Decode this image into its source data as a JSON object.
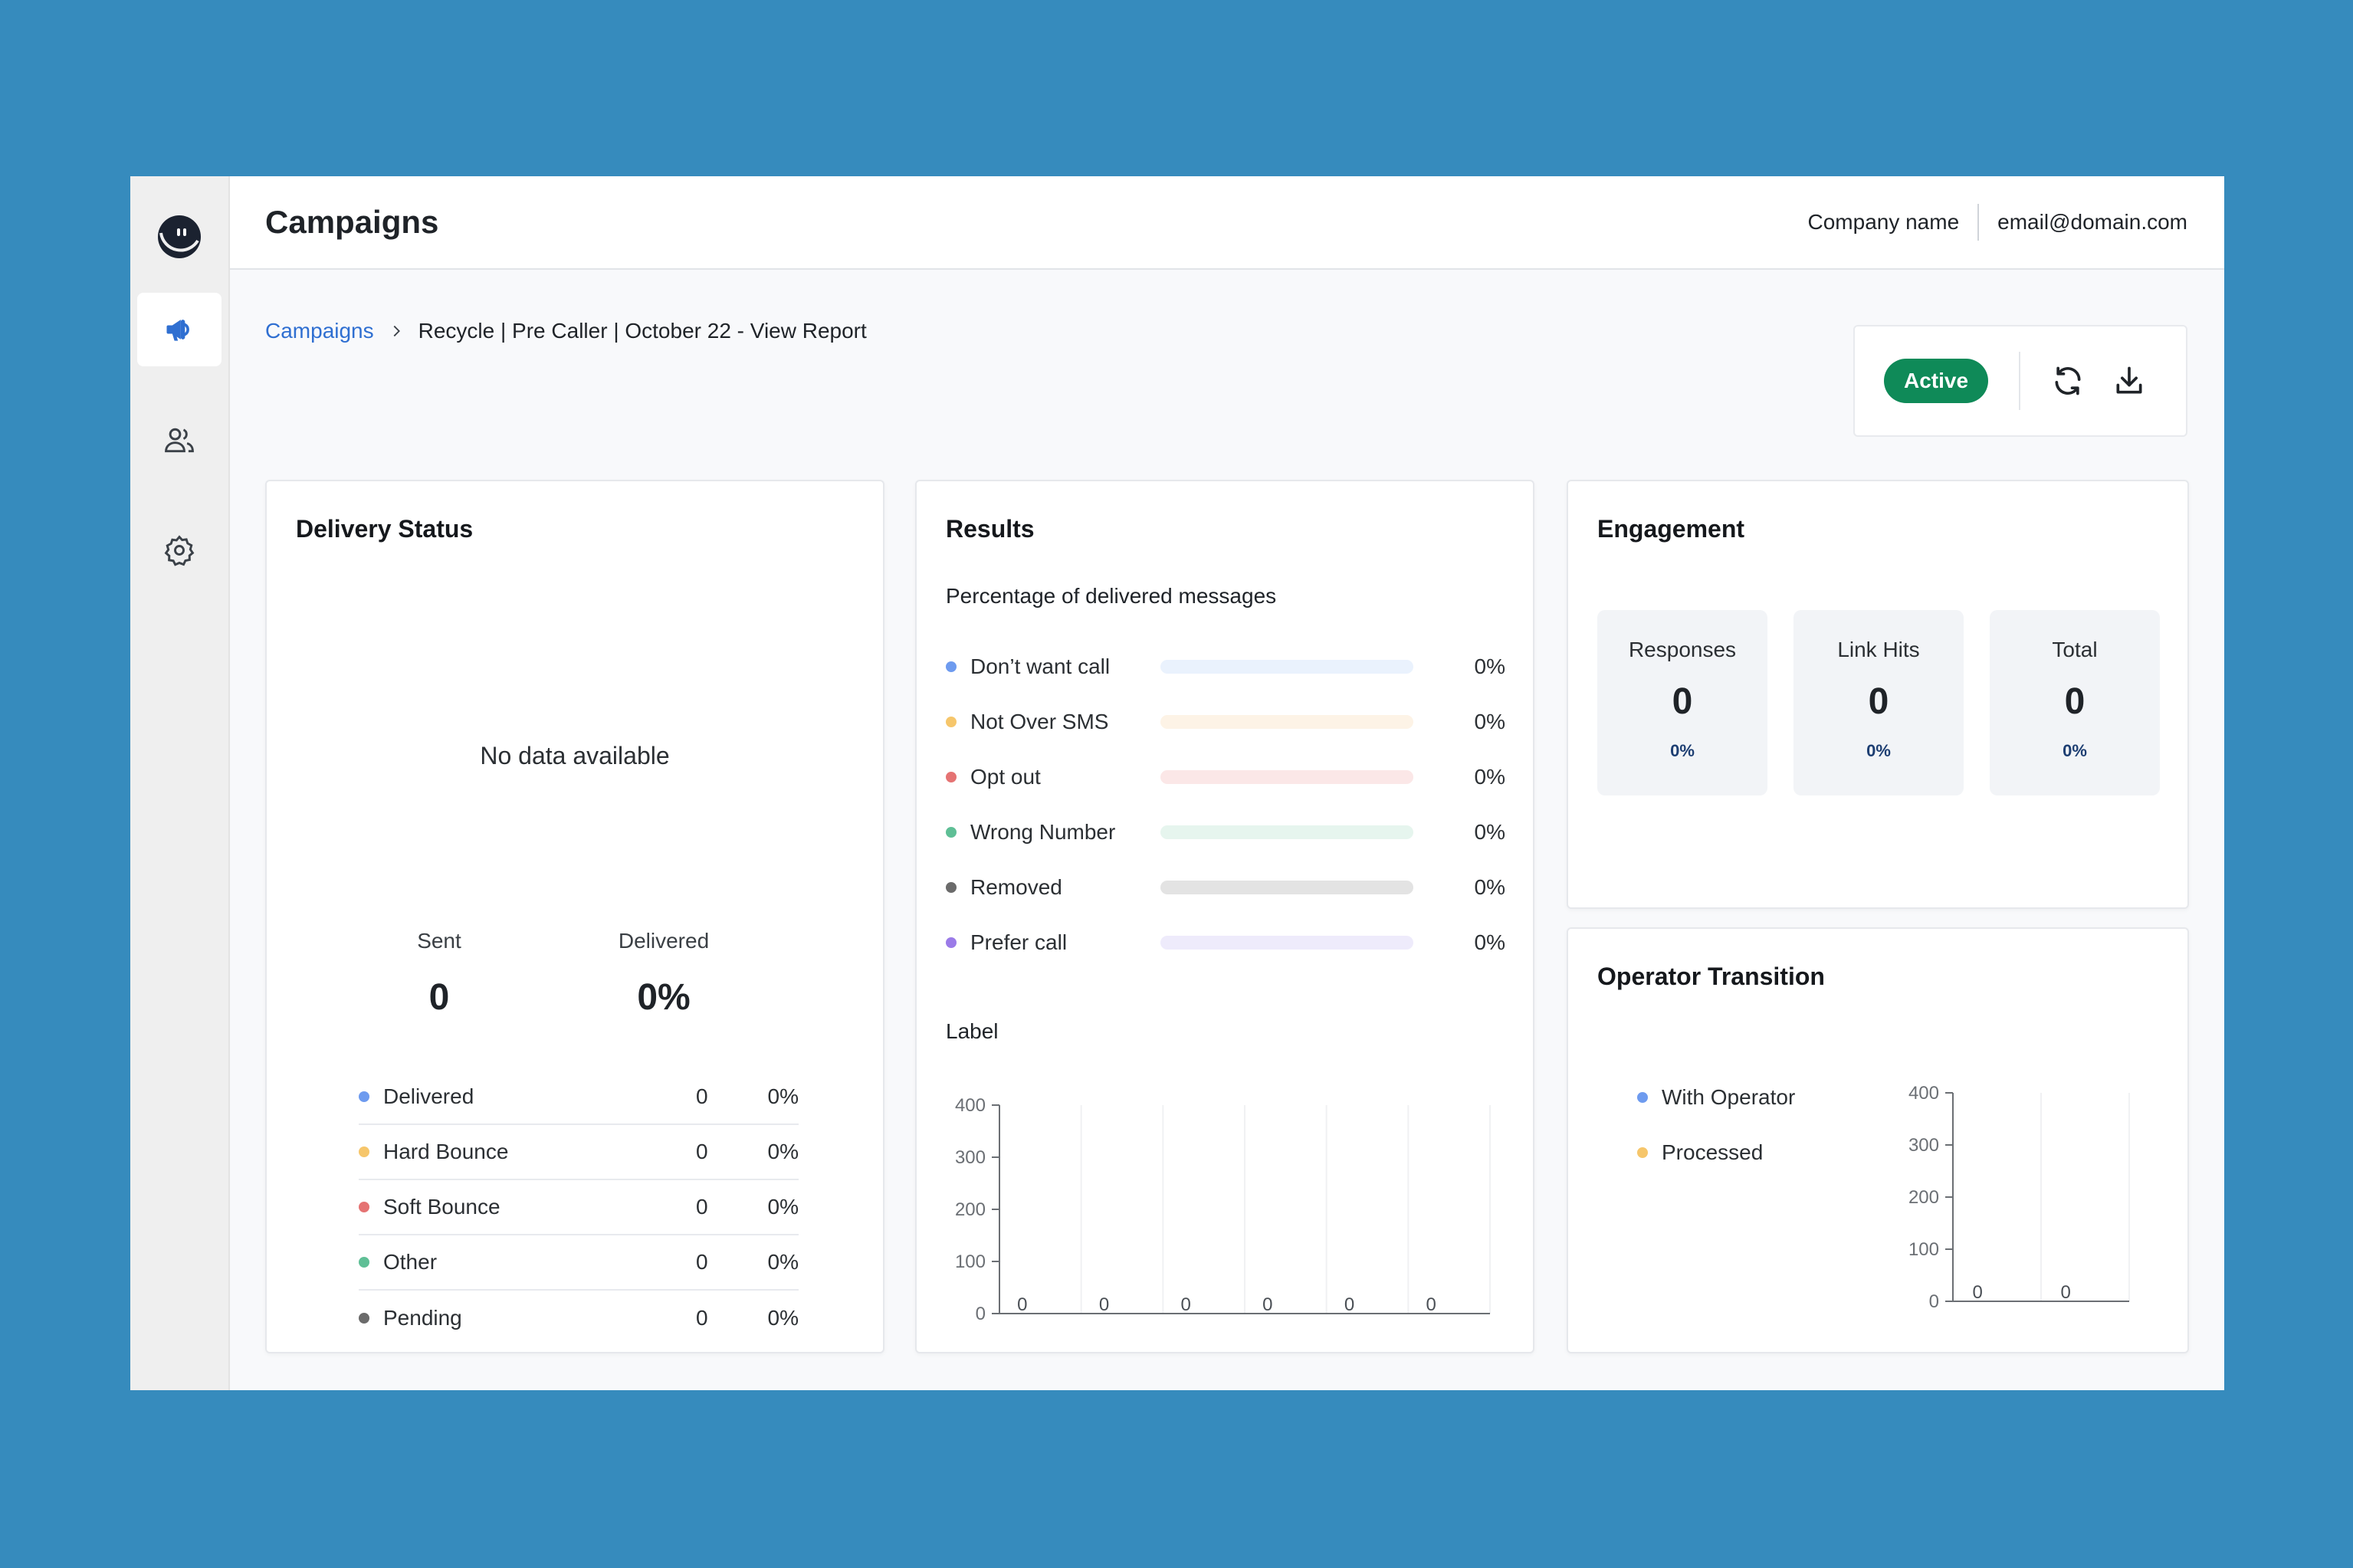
{
  "header": {
    "title": "Campaigns",
    "company": "Company name",
    "email": "email@domain.com"
  },
  "breadcrumb": {
    "root": "Campaigns",
    "current": "Recycle | Pre Caller | October 22 - View Report"
  },
  "status": {
    "label": "Active",
    "color": "#0f8a58"
  },
  "icons": [
    "app-logo-icon",
    "megaphone-icon",
    "users-icon",
    "gear-icon",
    "chevron-right-icon",
    "refresh-icon",
    "download-icon"
  ],
  "delivery": {
    "title": "Delivery Status",
    "empty": "No data available",
    "sent_label": "Sent",
    "sent_value": "0",
    "delivered_label": "Delivered",
    "delivered_value": "0%",
    "rows": [
      {
        "name": "Delivered",
        "count": "0",
        "pct": "0%",
        "color": "#6e9bef"
      },
      {
        "name": "Hard Bounce",
        "count": "0",
        "pct": "0%",
        "color": "#f6c66b"
      },
      {
        "name": "Soft Bounce",
        "count": "0",
        "pct": "0%",
        "color": "#e57373"
      },
      {
        "name": "Other",
        "count": "0",
        "pct": "0%",
        "color": "#5fbf96"
      },
      {
        "name": "Pending",
        "count": "0",
        "pct": "0%",
        "color": "#6b6b6b"
      }
    ]
  },
  "results": {
    "title": "Results",
    "subtitle": "Percentage of delivered messages",
    "rows": [
      {
        "name": "Don’t want call",
        "pct": "0%",
        "color": "#6e9bef",
        "bar": "#eaf2fd"
      },
      {
        "name": "Not Over SMS",
        "pct": "0%",
        "color": "#f6c66b",
        "bar": "#fdf3e6"
      },
      {
        "name": "Opt out",
        "pct": "0%",
        "color": "#e57373",
        "bar": "#fbe7e7"
      },
      {
        "name": "Wrong Number",
        "pct": "0%",
        "color": "#5fbf96",
        "bar": "#e6f5ee"
      },
      {
        "name": "Removed",
        "pct": "0%",
        "color": "#6b6b6b",
        "bar": "#e3e3e3"
      },
      {
        "name": "Prefer call",
        "pct": "0%",
        "color": "#9b7be8",
        "bar": "#eeebfb"
      }
    ],
    "chart_label": "Label"
  },
  "engagement": {
    "title": "Engagement",
    "boxes": [
      {
        "label": "Responses",
        "value": "0",
        "pct": "0%"
      },
      {
        "label": "Link Hits",
        "value": "0",
        "pct": "0%"
      },
      {
        "label": "Total",
        "value": "0",
        "pct": "0%"
      }
    ]
  },
  "operator": {
    "title": "Operator Transition",
    "legend": [
      {
        "name": "With Operator",
        "color": "#6e9bef"
      },
      {
        "name": "Processed",
        "color": "#f6c66b"
      }
    ]
  },
  "chart_data": [
    {
      "type": "bar",
      "title": "Label",
      "categories": [
        "",
        "",
        "",
        "",
        "",
        ""
      ],
      "values": [
        0,
        0,
        0,
        0,
        0,
        0
      ],
      "data_labels": [
        "0",
        "0",
        "0",
        "0",
        "0",
        "0"
      ],
      "yticks": [
        0,
        100,
        200,
        300,
        400
      ],
      "ylim": [
        0,
        400
      ],
      "grid": true
    },
    {
      "type": "bar",
      "title": "",
      "categories": [
        "",
        ""
      ],
      "values": [
        0,
        0
      ],
      "data_labels": [
        "0",
        "0"
      ],
      "yticks": [
        0,
        100,
        200,
        300,
        400
      ],
      "ylim": [
        0,
        400
      ],
      "grid": true
    }
  ]
}
